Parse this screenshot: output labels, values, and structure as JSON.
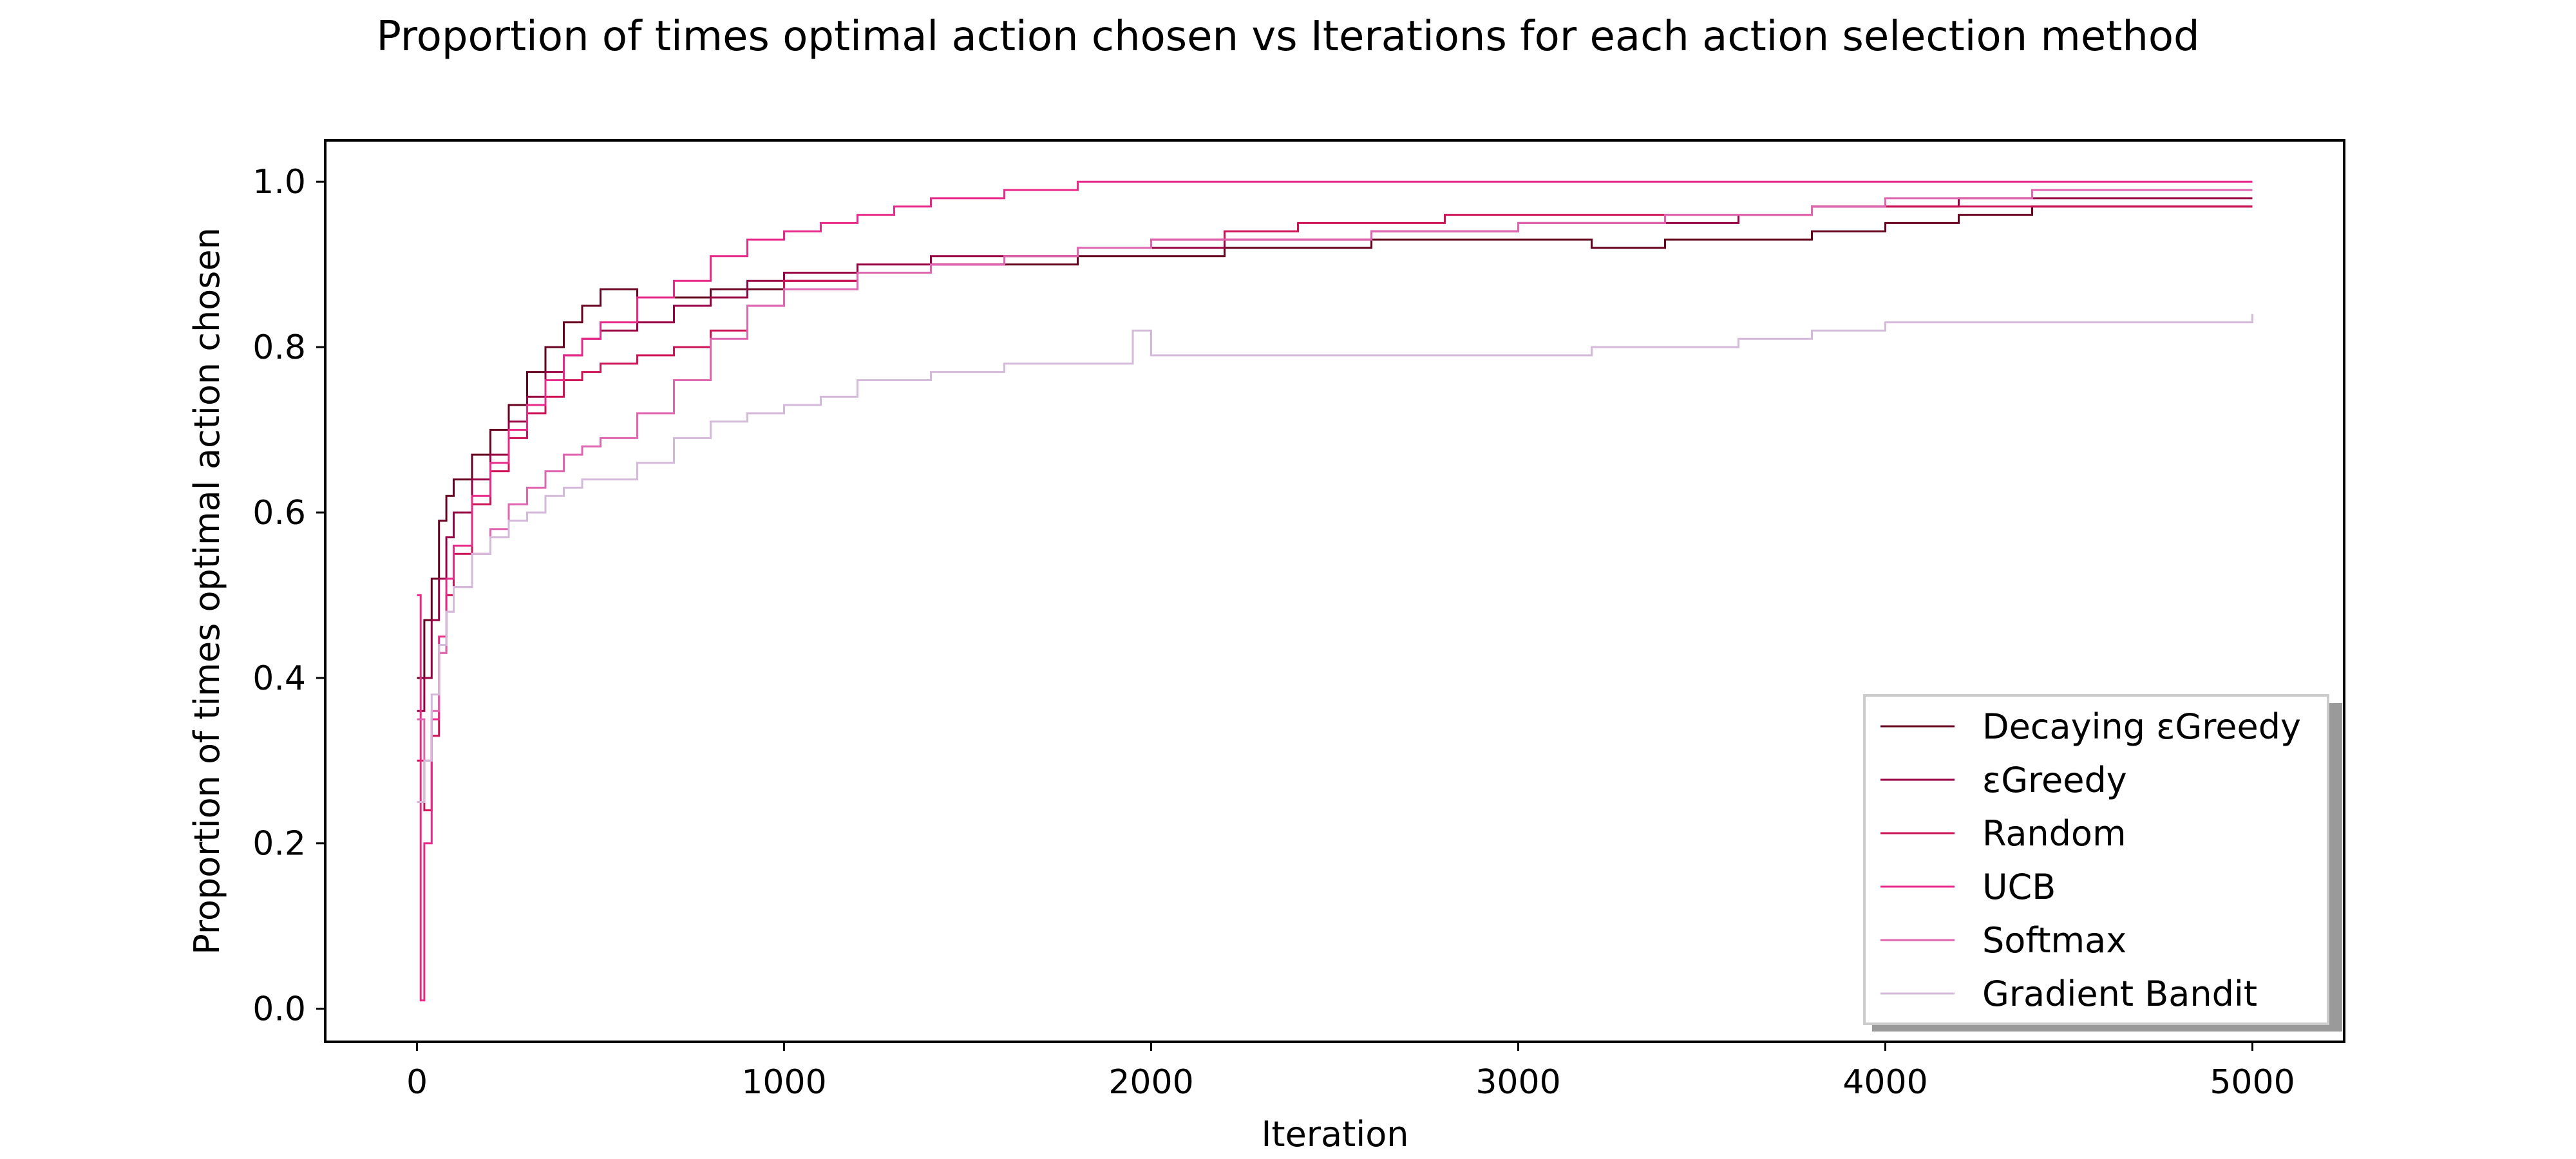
{
  "chart_data": {
    "type": "line",
    "title": "Proportion of times optimal action chosen vs Iterations for each action selection method",
    "xlabel": "Iteration",
    "ylabel": "Proportion of times optimal action chosen",
    "xlim": [
      -250,
      5250
    ],
    "ylim": [
      -0.04,
      1.05
    ],
    "xticks": [
      0,
      1000,
      2000,
      3000,
      4000,
      5000
    ],
    "yticks": [
      0.0,
      0.2,
      0.4,
      0.6,
      0.8,
      1.0
    ],
    "grid": false,
    "legend_position": "lower-right",
    "series": [
      {
        "name": "Decaying εGreedy",
        "color": "#67001f",
        "points": [
          [
            0,
            0.4
          ],
          [
            20,
            0.47
          ],
          [
            40,
            0.52
          ],
          [
            60,
            0.59
          ],
          [
            80,
            0.62
          ],
          [
            100,
            0.64
          ],
          [
            150,
            0.67
          ],
          [
            200,
            0.7
          ],
          [
            250,
            0.73
          ],
          [
            300,
            0.77
          ],
          [
            350,
            0.8
          ],
          [
            400,
            0.83
          ],
          [
            450,
            0.85
          ],
          [
            500,
            0.87
          ],
          [
            600,
            0.86
          ],
          [
            700,
            0.86
          ],
          [
            800,
            0.87
          ],
          [
            900,
            0.87
          ],
          [
            1000,
            0.88
          ],
          [
            1200,
            0.89
          ],
          [
            1400,
            0.9
          ],
          [
            1600,
            0.9
          ],
          [
            1800,
            0.91
          ],
          [
            2000,
            0.91
          ],
          [
            2200,
            0.92
          ],
          [
            2400,
            0.92
          ],
          [
            2600,
            0.93
          ],
          [
            2800,
            0.93
          ],
          [
            3000,
            0.93
          ],
          [
            3200,
            0.92
          ],
          [
            3400,
            0.93
          ],
          [
            3600,
            0.93
          ],
          [
            3800,
            0.94
          ],
          [
            4000,
            0.95
          ],
          [
            4200,
            0.96
          ],
          [
            4400,
            0.97
          ],
          [
            4600,
            0.97
          ],
          [
            4800,
            0.97
          ],
          [
            5000,
            0.97
          ]
        ]
      },
      {
        "name": "εGreedy",
        "color": "#980043",
        "points": [
          [
            0,
            0.36
          ],
          [
            20,
            0.4
          ],
          [
            40,
            0.47
          ],
          [
            60,
            0.52
          ],
          [
            80,
            0.57
          ],
          [
            100,
            0.6
          ],
          [
            150,
            0.64
          ],
          [
            200,
            0.67
          ],
          [
            250,
            0.71
          ],
          [
            300,
            0.74
          ],
          [
            350,
            0.77
          ],
          [
            400,
            0.79
          ],
          [
            450,
            0.81
          ],
          [
            500,
            0.82
          ],
          [
            600,
            0.83
          ],
          [
            700,
            0.85
          ],
          [
            800,
            0.86
          ],
          [
            900,
            0.88
          ],
          [
            1000,
            0.89
          ],
          [
            1200,
            0.9
          ],
          [
            1400,
            0.91
          ],
          [
            1600,
            0.91
          ],
          [
            1800,
            0.92
          ],
          [
            2000,
            0.92
          ],
          [
            2200,
            0.93
          ],
          [
            2400,
            0.93
          ],
          [
            2600,
            0.94
          ],
          [
            2800,
            0.94
          ],
          [
            3000,
            0.95
          ],
          [
            3200,
            0.95
          ],
          [
            3400,
            0.95
          ],
          [
            3600,
            0.96
          ],
          [
            3800,
            0.97
          ],
          [
            4000,
            0.97
          ],
          [
            4200,
            0.98
          ],
          [
            4400,
            0.98
          ],
          [
            4600,
            0.98
          ],
          [
            4800,
            0.98
          ],
          [
            5000,
            0.98
          ]
        ]
      },
      {
        "name": "Random",
        "color": "#ce1256",
        "points": [
          [
            0,
            0.3
          ],
          [
            20,
            0.24
          ],
          [
            40,
            0.33
          ],
          [
            60,
            0.43
          ],
          [
            80,
            0.5
          ],
          [
            100,
            0.55
          ],
          [
            150,
            0.61
          ],
          [
            200,
            0.65
          ],
          [
            250,
            0.69
          ],
          [
            300,
            0.72
          ],
          [
            350,
            0.74
          ],
          [
            400,
            0.76
          ],
          [
            450,
            0.77
          ],
          [
            500,
            0.78
          ],
          [
            600,
            0.79
          ],
          [
            700,
            0.8
          ],
          [
            800,
            0.82
          ],
          [
            900,
            0.85
          ],
          [
            1000,
            0.88
          ],
          [
            1200,
            0.89
          ],
          [
            1400,
            0.9
          ],
          [
            1600,
            0.91
          ],
          [
            1800,
            0.92
          ],
          [
            2000,
            0.93
          ],
          [
            2200,
            0.94
          ],
          [
            2400,
            0.95
          ],
          [
            2600,
            0.95
          ],
          [
            2800,
            0.96
          ],
          [
            3000,
            0.96
          ],
          [
            3200,
            0.96
          ],
          [
            3400,
            0.96
          ],
          [
            3600,
            0.96
          ],
          [
            3800,
            0.97
          ],
          [
            4000,
            0.97
          ],
          [
            4200,
            0.97
          ],
          [
            4400,
            0.97
          ],
          [
            4600,
            0.97
          ],
          [
            4800,
            0.97
          ],
          [
            5000,
            0.97
          ]
        ]
      },
      {
        "name": "UCB",
        "color": "#e7298a",
        "points": [
          [
            0,
            0.5
          ],
          [
            10,
            0.01
          ],
          [
            20,
            0.2
          ],
          [
            40,
            0.35
          ],
          [
            60,
            0.45
          ],
          [
            80,
            0.52
          ],
          [
            100,
            0.56
          ],
          [
            150,
            0.62
          ],
          [
            200,
            0.66
          ],
          [
            250,
            0.7
          ],
          [
            300,
            0.73
          ],
          [
            350,
            0.76
          ],
          [
            400,
            0.79
          ],
          [
            450,
            0.81
          ],
          [
            500,
            0.83
          ],
          [
            600,
            0.86
          ],
          [
            700,
            0.88
          ],
          [
            800,
            0.91
          ],
          [
            900,
            0.93
          ],
          [
            1000,
            0.94
          ],
          [
            1100,
            0.95
          ],
          [
            1200,
            0.96
          ],
          [
            1300,
            0.97
          ],
          [
            1400,
            0.98
          ],
          [
            1500,
            0.98
          ],
          [
            1600,
            0.99
          ],
          [
            1700,
            0.99
          ],
          [
            1800,
            1.0
          ],
          [
            2000,
            1.0
          ],
          [
            2200,
            1.0
          ],
          [
            2400,
            1.0
          ],
          [
            2600,
            1.0
          ],
          [
            2800,
            1.0
          ],
          [
            3000,
            1.0
          ],
          [
            3500,
            1.0
          ],
          [
            4000,
            1.0
          ],
          [
            4500,
            1.0
          ],
          [
            5000,
            1.0
          ]
        ]
      },
      {
        "name": "Softmax",
        "color": "#df65b0",
        "points": [
          [
            0,
            0.35
          ],
          [
            20,
            0.3
          ],
          [
            40,
            0.36
          ],
          [
            60,
            0.43
          ],
          [
            80,
            0.48
          ],
          [
            100,
            0.51
          ],
          [
            150,
            0.55
          ],
          [
            200,
            0.58
          ],
          [
            250,
            0.61
          ],
          [
            300,
            0.63
          ],
          [
            350,
            0.65
          ],
          [
            400,
            0.67
          ],
          [
            450,
            0.68
          ],
          [
            500,
            0.69
          ],
          [
            600,
            0.72
          ],
          [
            700,
            0.76
          ],
          [
            800,
            0.81
          ],
          [
            900,
            0.85
          ],
          [
            1000,
            0.87
          ],
          [
            1200,
            0.89
          ],
          [
            1400,
            0.9
          ],
          [
            1600,
            0.91
          ],
          [
            1800,
            0.92
          ],
          [
            2000,
            0.93
          ],
          [
            2200,
            0.93
          ],
          [
            2400,
            0.93
          ],
          [
            2600,
            0.94
          ],
          [
            2800,
            0.94
          ],
          [
            3000,
            0.95
          ],
          [
            3200,
            0.95
          ],
          [
            3400,
            0.96
          ],
          [
            3600,
            0.96
          ],
          [
            3800,
            0.97
          ],
          [
            4000,
            0.98
          ],
          [
            4200,
            0.98
          ],
          [
            4400,
            0.99
          ],
          [
            4600,
            0.99
          ],
          [
            4800,
            0.99
          ],
          [
            5000,
            0.99
          ]
        ]
      },
      {
        "name": "Gradient Bandit",
        "color": "#d4b9da",
        "points": [
          [
            0,
            0.25
          ],
          [
            20,
            0.3
          ],
          [
            40,
            0.38
          ],
          [
            60,
            0.44
          ],
          [
            80,
            0.48
          ],
          [
            100,
            0.51
          ],
          [
            150,
            0.55
          ],
          [
            200,
            0.57
          ],
          [
            250,
            0.59
          ],
          [
            300,
            0.6
          ],
          [
            350,
            0.62
          ],
          [
            400,
            0.63
          ],
          [
            450,
            0.64
          ],
          [
            500,
            0.64
          ],
          [
            600,
            0.66
          ],
          [
            700,
            0.69
          ],
          [
            800,
            0.71
          ],
          [
            900,
            0.72
          ],
          [
            1000,
            0.73
          ],
          [
            1100,
            0.74
          ],
          [
            1200,
            0.76
          ],
          [
            1400,
            0.77
          ],
          [
            1600,
            0.78
          ],
          [
            1800,
            0.78
          ],
          [
            1950,
            0.82
          ],
          [
            2000,
            0.79
          ],
          [
            2200,
            0.79
          ],
          [
            2400,
            0.79
          ],
          [
            2600,
            0.79
          ],
          [
            2800,
            0.79
          ],
          [
            3000,
            0.79
          ],
          [
            3200,
            0.8
          ],
          [
            3400,
            0.8
          ],
          [
            3600,
            0.81
          ],
          [
            3800,
            0.82
          ],
          [
            4000,
            0.83
          ],
          [
            4200,
            0.83
          ],
          [
            4400,
            0.83
          ],
          [
            4600,
            0.83
          ],
          [
            4800,
            0.83
          ],
          [
            5000,
            0.84
          ]
        ]
      }
    ]
  }
}
